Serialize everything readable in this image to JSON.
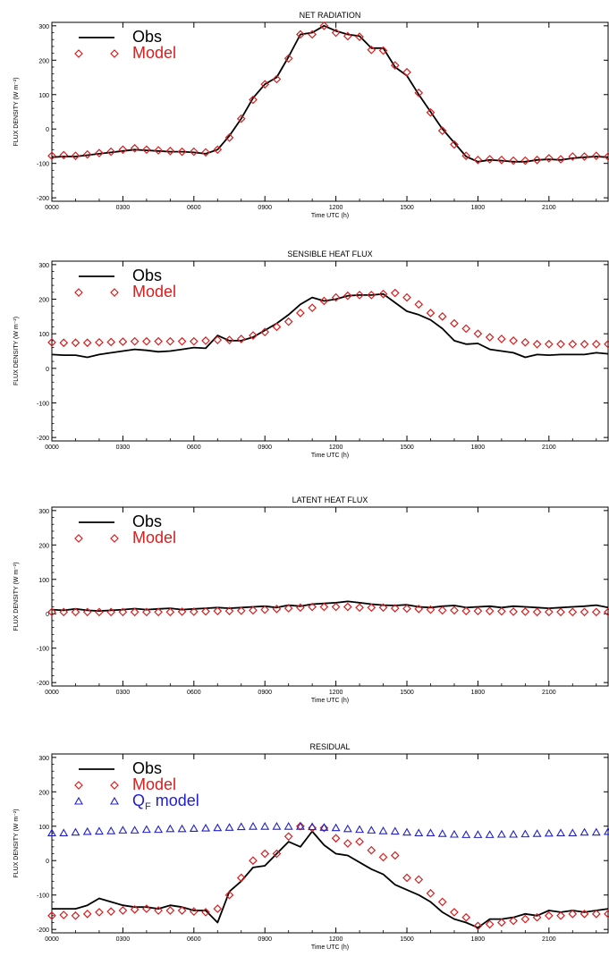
{
  "figure": {
    "xlabel": "Time UTC (h)",
    "ylabel": "FLUX DENSITY (W m⁻²)",
    "x_ticks": [
      "0000",
      "0300",
      "0600",
      "0900",
      "1200",
      "1500",
      "1800",
      "2100"
    ],
    "y_ticks": [
      "-200",
      "-100",
      "0",
      "100",
      "200",
      "300"
    ],
    "colors": {
      "obs": "#000000",
      "model": "#d42020",
      "qf": "#2020c8"
    }
  },
  "chart_data": [
    {
      "type": "line",
      "title": "NET RADIATION",
      "xlabel": "Time UTC (h)",
      "ylabel": "FLUX DENSITY (W m⁻²)",
      "xlim": [
        0,
        23.5
      ],
      "ylim": [
        -210,
        310
      ],
      "grid": false,
      "legend": "top-left",
      "series": [
        {
          "name": "Obs",
          "style": "line",
          "x": [
            0,
            0.5,
            1,
            1.5,
            2,
            2.5,
            3,
            3.5,
            4,
            4.5,
            5,
            5.5,
            6,
            6.5,
            7,
            7.5,
            8,
            8.5,
            9,
            9.5,
            10,
            10.5,
            11,
            11.5,
            12,
            12.5,
            13,
            13.5,
            14,
            14.5,
            15,
            15.5,
            16,
            16.5,
            17,
            17.5,
            18,
            18.5,
            19,
            19.5,
            20,
            20.5,
            21,
            21.5,
            22,
            22.5,
            23,
            23.5
          ],
          "y": [
            -82,
            -80,
            -80,
            -76,
            -72,
            -68,
            -64,
            -60,
            -62,
            -64,
            -66,
            -66,
            -68,
            -72,
            -60,
            -20,
            30,
            90,
            130,
            150,
            210,
            275,
            280,
            300,
            285,
            275,
            270,
            235,
            235,
            180,
            155,
            100,
            50,
            0,
            -40,
            -80,
            -95,
            -90,
            -92,
            -95,
            -95,
            -90,
            -88,
            -90,
            -85,
            -82,
            -80,
            -82
          ]
        },
        {
          "name": "Model",
          "style": "markers",
          "x": [
            0,
            0.5,
            1,
            1.5,
            2,
            2.5,
            3,
            3.5,
            4,
            4.5,
            5,
            5.5,
            6,
            6.5,
            7,
            7.5,
            8,
            8.5,
            9,
            9.5,
            10,
            10.5,
            11,
            11.5,
            12,
            12.5,
            13,
            13.5,
            14,
            14.5,
            15,
            15.5,
            16,
            16.5,
            17,
            17.5,
            18,
            18.5,
            19,
            19.5,
            20,
            20.5,
            21,
            21.5,
            22,
            22.5,
            23,
            23.5
          ],
          "y": [
            -78,
            -76,
            -78,
            -74,
            -70,
            -66,
            -60,
            -56,
            -60,
            -62,
            -64,
            -66,
            -66,
            -68,
            -60,
            -25,
            30,
            85,
            130,
            145,
            205,
            275,
            275,
            300,
            280,
            270,
            268,
            230,
            228,
            185,
            165,
            105,
            48,
            -5,
            -45,
            -78,
            -90,
            -88,
            -90,
            -92,
            -92,
            -90,
            -85,
            -88,
            -80,
            -80,
            -78,
            -80
          ]
        }
      ]
    },
    {
      "type": "line",
      "title": "SENSIBLE HEAT FLUX",
      "xlabel": "Time UTC (h)",
      "ylabel": "FLUX DENSITY (W m⁻²)",
      "xlim": [
        0,
        23.5
      ],
      "ylim": [
        -210,
        310
      ],
      "grid": false,
      "legend": "top-left",
      "series": [
        {
          "name": "Obs",
          "style": "line",
          "x": [
            0,
            0.5,
            1,
            1.5,
            2,
            2.5,
            3,
            3.5,
            4,
            4.5,
            5,
            5.5,
            6,
            6.5,
            7,
            7.5,
            8,
            8.5,
            9,
            9.5,
            10,
            10.5,
            11,
            11.5,
            12,
            12.5,
            13,
            13.5,
            14,
            14.5,
            15,
            15.5,
            16,
            16.5,
            17,
            17.5,
            18,
            18.5,
            19,
            19.5,
            20,
            20.5,
            21,
            21.5,
            22,
            22.5,
            23,
            23.5
          ],
          "y": [
            40,
            38,
            38,
            32,
            40,
            45,
            50,
            55,
            52,
            48,
            50,
            55,
            60,
            58,
            95,
            80,
            80,
            90,
            110,
            130,
            155,
            185,
            205,
            195,
            200,
            210,
            212,
            212,
            215,
            190,
            165,
            155,
            140,
            115,
            80,
            70,
            72,
            55,
            50,
            45,
            32,
            40,
            38,
            40,
            40,
            40,
            45,
            42
          ]
        },
        {
          "name": "Model",
          "style": "markers",
          "x": [
            0,
            0.5,
            1,
            1.5,
            2,
            2.5,
            3,
            3.5,
            4,
            4.5,
            5,
            5.5,
            6,
            6.5,
            7,
            7.5,
            8,
            8.5,
            9,
            9.5,
            10,
            10.5,
            11,
            11.5,
            12,
            12.5,
            13,
            13.5,
            14,
            14.5,
            15,
            15.5,
            16,
            16.5,
            17,
            17.5,
            18,
            18.5,
            19,
            19.5,
            20,
            20.5,
            21,
            21.5,
            22,
            22.5,
            23,
            23.5
          ],
          "y": [
            75,
            74,
            74,
            74,
            75,
            76,
            77,
            78,
            78,
            78,
            78,
            78,
            78,
            80,
            82,
            82,
            85,
            95,
            105,
            120,
            135,
            160,
            175,
            195,
            205,
            210,
            212,
            212,
            215,
            218,
            205,
            185,
            160,
            150,
            130,
            115,
            100,
            90,
            85,
            80,
            75,
            70,
            70,
            70,
            70,
            70,
            70,
            70
          ]
        }
      ]
    },
    {
      "type": "line",
      "title": "LATENT HEAT FLUX",
      "xlabel": "Time UTC (h)",
      "ylabel": "FLUX DENSITY (W m⁻²)",
      "xlim": [
        0,
        23.5
      ],
      "ylim": [
        -210,
        310
      ],
      "grid": false,
      "legend": "top-left",
      "series": [
        {
          "name": "Obs",
          "style": "line",
          "x": [
            0,
            0.5,
            1,
            1.5,
            2,
            2.5,
            3,
            3.5,
            4,
            4.5,
            5,
            5.5,
            6,
            6.5,
            7,
            7.5,
            8,
            8.5,
            9,
            9.5,
            10,
            10.5,
            11,
            11.5,
            12,
            12.5,
            13,
            13.5,
            14,
            14.5,
            15,
            15.5,
            16,
            16.5,
            17,
            17.5,
            18,
            18.5,
            19,
            19.5,
            20,
            20.5,
            21,
            21.5,
            22,
            22.5,
            23,
            23.5
          ],
          "y": [
            12,
            10,
            14,
            10,
            8,
            10,
            12,
            15,
            12,
            14,
            16,
            12,
            14,
            16,
            18,
            16,
            18,
            20,
            22,
            18,
            25,
            22,
            28,
            30,
            32,
            36,
            32,
            28,
            25,
            24,
            26,
            20,
            18,
            22,
            24,
            18,
            20,
            22,
            18,
            22,
            20,
            18,
            16,
            18,
            20,
            22,
            25,
            18
          ]
        },
        {
          "name": "Model",
          "style": "markers",
          "x": [
            0,
            0.5,
            1,
            1.5,
            2,
            2.5,
            3,
            3.5,
            4,
            4.5,
            5,
            5.5,
            6,
            6.5,
            7,
            7.5,
            8,
            8.5,
            9,
            9.5,
            10,
            10.5,
            11,
            11.5,
            12,
            12.5,
            13,
            13.5,
            14,
            14.5,
            15,
            15.5,
            16,
            16.5,
            17,
            17.5,
            18,
            18.5,
            19,
            19.5,
            20,
            20.5,
            21,
            21.5,
            22,
            22.5,
            23,
            23.5
          ],
          "y": [
            5,
            5,
            5,
            5,
            5,
            5,
            5,
            5,
            5,
            5,
            5,
            6,
            6,
            7,
            8,
            8,
            9,
            10,
            12,
            14,
            16,
            18,
            20,
            20,
            20,
            20,
            18,
            18,
            18,
            16,
            15,
            14,
            12,
            10,
            10,
            8,
            8,
            8,
            7,
            6,
            6,
            5,
            5,
            5,
            5,
            5,
            5,
            5
          ]
        }
      ]
    },
    {
      "type": "line",
      "title": "RESIDUAL",
      "xlabel": "Time UTC (h)",
      "ylabel": "FLUX DENSITY (W m⁻²)",
      "xlim": [
        0,
        23.5
      ],
      "ylim": [
        -210,
        310
      ],
      "grid": false,
      "legend": "top-left",
      "series": [
        {
          "name": "Obs",
          "style": "line",
          "x": [
            0,
            0.5,
            1,
            1.5,
            2,
            2.5,
            3,
            3.5,
            4,
            4.5,
            5,
            5.5,
            6,
            6.5,
            7,
            7.5,
            8,
            8.5,
            9,
            9.5,
            10,
            10.5,
            11,
            11.5,
            12,
            12.5,
            13,
            13.5,
            14,
            14.5,
            15,
            15.5,
            16,
            16.5,
            17,
            17.5,
            18,
            18.5,
            19,
            19.5,
            20,
            20.5,
            21,
            21.5,
            22,
            22.5,
            23,
            23.5
          ],
          "y": [
            -140,
            -140,
            -140,
            -130,
            -110,
            -120,
            -130,
            -135,
            -135,
            -140,
            -130,
            -135,
            -145,
            -145,
            -180,
            -90,
            -60,
            -20,
            -15,
            20,
            55,
            40,
            85,
            45,
            20,
            15,
            -5,
            -25,
            -40,
            -70,
            -85,
            -100,
            -120,
            -150,
            -170,
            -180,
            -195,
            -170,
            -170,
            -165,
            -155,
            -160,
            -145,
            -150,
            -145,
            -150,
            -145,
            -140
          ]
        },
        {
          "name": "Model",
          "style": "markers",
          "x": [
            0,
            0.5,
            1,
            1.5,
            2,
            2.5,
            3,
            3.5,
            4,
            4.5,
            5,
            5.5,
            6,
            6.5,
            7,
            7.5,
            8,
            8.5,
            9,
            9.5,
            10,
            10.5,
            11,
            11.5,
            12,
            12.5,
            13,
            13.5,
            14,
            14.5,
            15,
            15.5,
            16,
            16.5,
            17,
            17.5,
            18,
            18.5,
            19,
            19.5,
            20,
            20.5,
            21,
            21.5,
            22,
            22.5,
            23,
            23.5
          ],
          "y": [
            -160,
            -158,
            -160,
            -155,
            -150,
            -148,
            -145,
            -142,
            -140,
            -145,
            -145,
            -145,
            -148,
            -150,
            -140,
            -100,
            -50,
            0,
            20,
            20,
            70,
            100,
            95,
            95,
            65,
            50,
            55,
            30,
            10,
            15,
            -50,
            -55,
            -95,
            -120,
            -150,
            -165,
            -190,
            -185,
            -180,
            -175,
            -170,
            -165,
            -160,
            -160,
            -155,
            -155,
            -155,
            -155
          ]
        },
        {
          "name": "Q",
          "subscript": "F",
          "suffix": " model",
          "style": "triangles",
          "x": [
            0,
            0.5,
            1,
            1.5,
            2,
            2.5,
            3,
            3.5,
            4,
            4.5,
            5,
            5.5,
            6,
            6.5,
            7,
            7.5,
            8,
            8.5,
            9,
            9.5,
            10,
            10.5,
            11,
            11.5,
            12,
            12.5,
            13,
            13.5,
            14,
            14.5,
            15,
            15.5,
            16,
            16.5,
            17,
            17.5,
            18,
            18.5,
            19,
            19.5,
            20,
            20.5,
            21,
            21.5,
            22,
            22.5,
            23,
            23.5
          ],
          "y": [
            80,
            80,
            82,
            84,
            85,
            86,
            88,
            88,
            90,
            90,
            92,
            92,
            93,
            94,
            95,
            96,
            98,
            99,
            99,
            99,
            99,
            99,
            98,
            96,
            95,
            92,
            90,
            88,
            86,
            85,
            82,
            80,
            80,
            78,
            76,
            75,
            75,
            75,
            76,
            76,
            77,
            78,
            79,
            80,
            80,
            82,
            82,
            84
          ]
        }
      ]
    }
  ]
}
